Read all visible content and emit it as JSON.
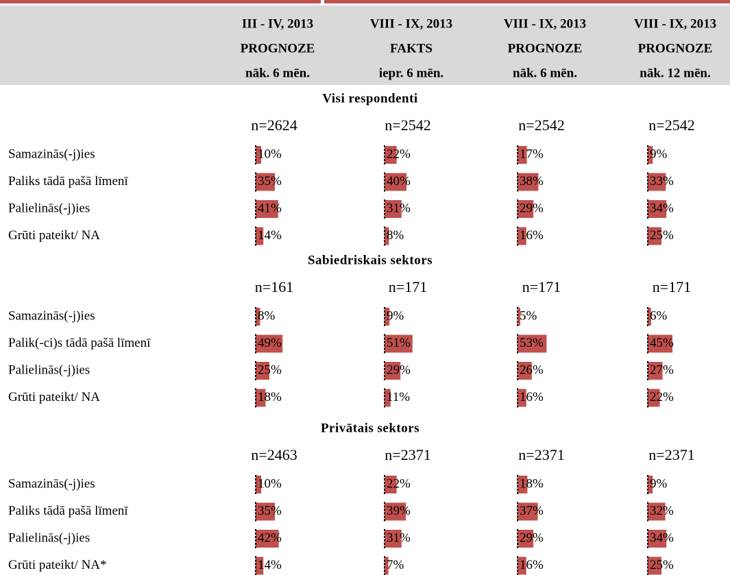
{
  "header_columns": [
    {
      "lines": [
        "III - IV, 2013",
        "PROGNOZE",
        "nāk. 6 mēn."
      ]
    },
    {
      "lines": [
        "VIII - IX, 2013",
        "FAKTS",
        "iepr. 6 mēn."
      ]
    },
    {
      "lines": [
        "VIII - IX, 2013",
        "PROGNOZE",
        "nāk. 6 mēn."
      ]
    },
    {
      "lines": [
        "VIII - IX, 2013",
        "PROGNOZE",
        "nāk. 12 mēn."
      ]
    }
  ],
  "sections": [
    {
      "title": "Visi respondenti",
      "n": [
        "n=2624",
        "n=2542",
        "n=2542",
        "n=2542"
      ],
      "rows": [
        {
          "label": "Samazinās(-j)ies",
          "values": [
            10,
            22,
            17,
            9
          ],
          "value_labels": [
            "10%",
            "22%",
            "17%",
            "9%"
          ]
        },
        {
          "label": "Paliks tādā pašā līmenī",
          "values": [
            35,
            40,
            38,
            33
          ],
          "value_labels": [
            "35%",
            "40%",
            "38%",
            "33%"
          ]
        },
        {
          "label": "Palielinās(-j)ies",
          "values": [
            41,
            31,
            29,
            34
          ],
          "value_labels": [
            "41%",
            "31%",
            "29%",
            "34%"
          ]
        },
        {
          "label": "Grūti pateikt/ NA",
          "values": [
            14,
            8,
            16,
            25
          ],
          "value_labels": [
            "14%",
            "8%",
            "16%",
            "25%"
          ]
        }
      ]
    },
    {
      "title": "Sabiedriskais sektors",
      "n": [
        "n=161",
        "n=171",
        "n=171",
        "n=171"
      ],
      "rows": [
        {
          "label": "Samazinās(-j)ies",
          "values": [
            8,
            9,
            5,
            6
          ],
          "value_labels": [
            "8%",
            "9%",
            "5%",
            "6%"
          ]
        },
        {
          "label": "Palik(-ci)s tādā pašā līmenī",
          "values": [
            49,
            51,
            53,
            45
          ],
          "value_labels": [
            "49%",
            "51%",
            "53%",
            "45%"
          ]
        },
        {
          "label": "Palielinās(-j)ies",
          "values": [
            25,
            29,
            26,
            27
          ],
          "value_labels": [
            "25%",
            "29%",
            "26%",
            "27%"
          ]
        },
        {
          "label": "Grūti pateikt/ NA",
          "values": [
            18,
            11,
            16,
            22
          ],
          "value_labels": [
            "18%",
            "11%",
            "16%",
            "22%"
          ]
        }
      ]
    },
    {
      "title": "Privātais sektors",
      "n": [
        "n=2463",
        "n=2371",
        "n=2371",
        "n=2371"
      ],
      "rows": [
        {
          "label": "Samazinās(-j)ies",
          "values": [
            10,
            22,
            18,
            9
          ],
          "value_labels": [
            "10%",
            "22%",
            "18%",
            "9%"
          ]
        },
        {
          "label": "Paliks tādā pašā līmenī",
          "values": [
            35,
            39,
            37,
            32
          ],
          "value_labels": [
            "35%",
            "39%",
            "37%",
            "32%"
          ]
        },
        {
          "label": "Palielinās(-j)ies",
          "values": [
            42,
            31,
            29,
            34
          ],
          "value_labels": [
            "42%",
            "31%",
            "29%",
            "34%"
          ]
        },
        {
          "label": "Grūti pateikt/ NA*",
          "values": [
            14,
            7,
            16,
            25
          ],
          "value_labels": [
            "14%",
            "7%",
            "16%",
            "25%"
          ]
        }
      ]
    }
  ]
}
